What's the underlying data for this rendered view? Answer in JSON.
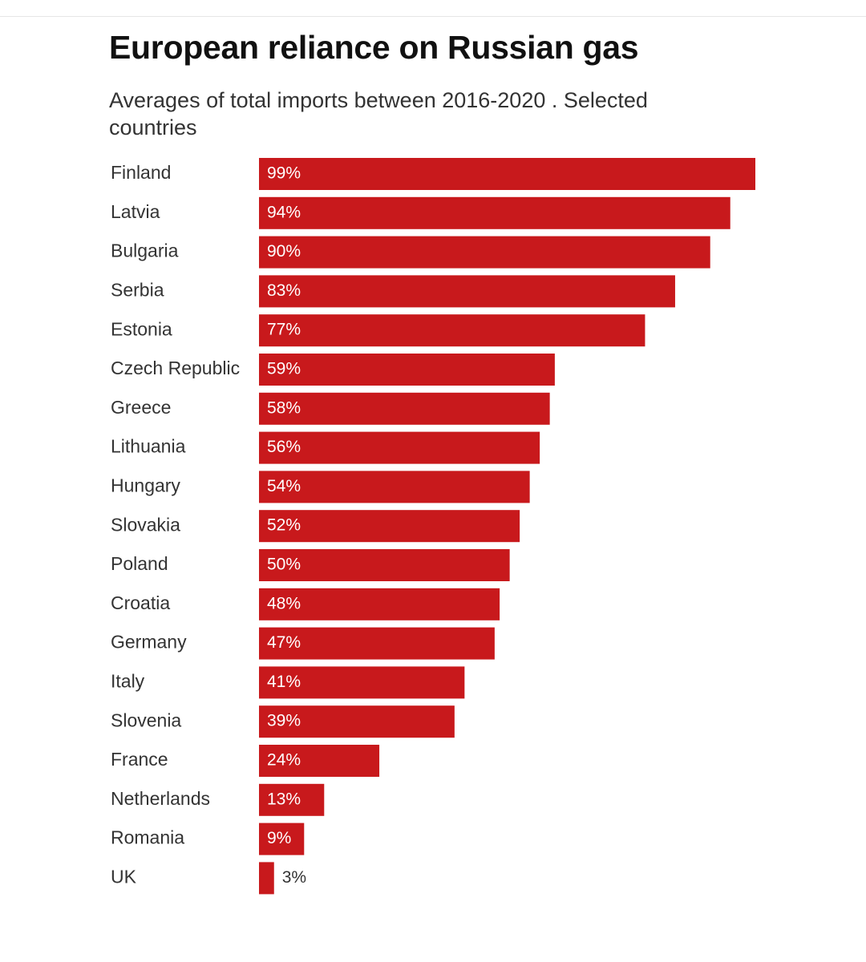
{
  "chart_data": {
    "type": "bar",
    "orientation": "horizontal",
    "title": "European reliance on Russian gas",
    "subtitle": "Averages of total imports between 2016-2020 . Selected countries",
    "categories": [
      "Finland",
      "Latvia",
      "Bulgaria",
      "Serbia",
      "Estonia",
      "Czech Republic",
      "Greece",
      "Lithuania",
      "Hungary",
      "Slovakia",
      "Poland",
      "Croatia",
      "Germany",
      "Italy",
      "Slovenia",
      "France",
      "Netherlands",
      "Romania",
      "UK"
    ],
    "values": [
      99,
      94,
      90,
      83,
      77,
      59,
      58,
      56,
      54,
      52,
      50,
      48,
      47,
      41,
      39,
      24,
      13,
      9,
      3
    ],
    "value_labels": [
      "99%",
      "94%",
      "90%",
      "83%",
      "77%",
      "59%",
      "58%",
      "56%",
      "54%",
      "52%",
      "50%",
      "48%",
      "47%",
      "41%",
      "39%",
      "24%",
      "13%",
      "9%",
      "3%"
    ],
    "xlim": [
      0,
      99
    ],
    "grid": false,
    "legend": "none",
    "bar_color": "#c8191c",
    "inside_label_color": "#ffffff",
    "outside_label_color": "#333333"
  }
}
